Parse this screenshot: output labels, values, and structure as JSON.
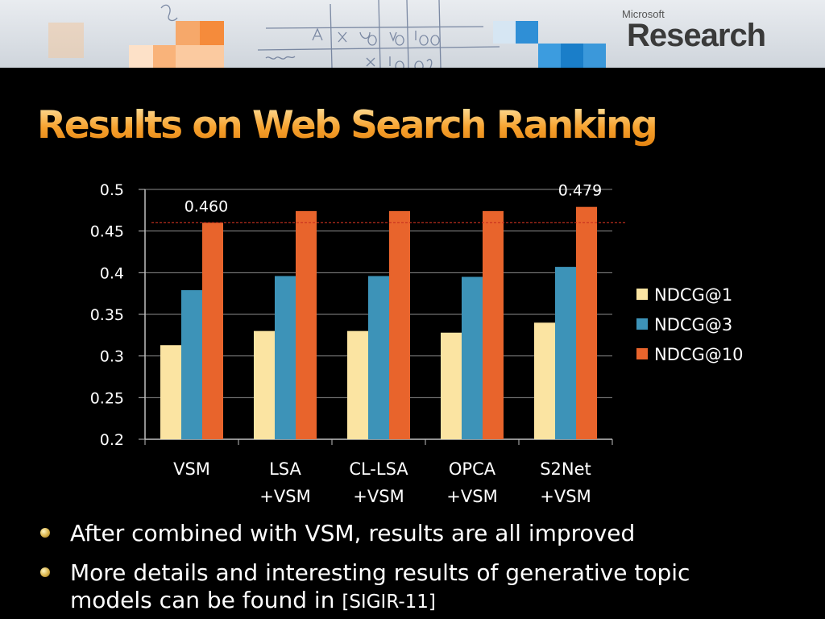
{
  "header": {
    "brand_small": "Microsoft",
    "brand_big": "Research"
  },
  "title": "Results on Web Search Ranking",
  "chart_data": {
    "type": "bar",
    "categories": [
      [
        "VSM"
      ],
      [
        "LSA",
        "+VSM"
      ],
      [
        "CL-LSA",
        "+VSM"
      ],
      [
        "OPCA",
        "+VSM"
      ],
      [
        "S2Net",
        "+VSM"
      ]
    ],
    "series": [
      {
        "name": "NDCG@1",
        "color": "#fbe4a2",
        "values": [
          0.313,
          0.33,
          0.33,
          0.328,
          0.34
        ]
      },
      {
        "name": "NDCG@3",
        "color": "#3d93b8",
        "values": [
          0.379,
          0.396,
          0.396,
          0.395,
          0.407
        ]
      },
      {
        "name": "NDCG@10",
        "color": "#e8642c",
        "values": [
          0.46,
          0.474,
          0.474,
          0.474,
          0.479
        ]
      }
    ],
    "ylim": [
      0.2,
      0.5
    ],
    "yticks": [
      "0.5",
      "0.45",
      "0.4",
      "0.35",
      "0.3",
      "0.25",
      "0.2"
    ],
    "grid": true,
    "legend_position": "right",
    "reference_line": {
      "value": 0.46,
      "color": "#c8301e"
    },
    "annotations": [
      {
        "text": "0.460",
        "category_index": 0,
        "series": "NDCG@10"
      },
      {
        "text": "0.479",
        "category_index": 4,
        "series": "NDCG@10"
      }
    ]
  },
  "bullets": [
    {
      "text": "After combined with VSM, results are all improved",
      "citation": ""
    },
    {
      "text": "More details and interesting results of generative topic",
      "text2": "models can be found in ",
      "citation": "[SIGIR-11]"
    }
  ]
}
